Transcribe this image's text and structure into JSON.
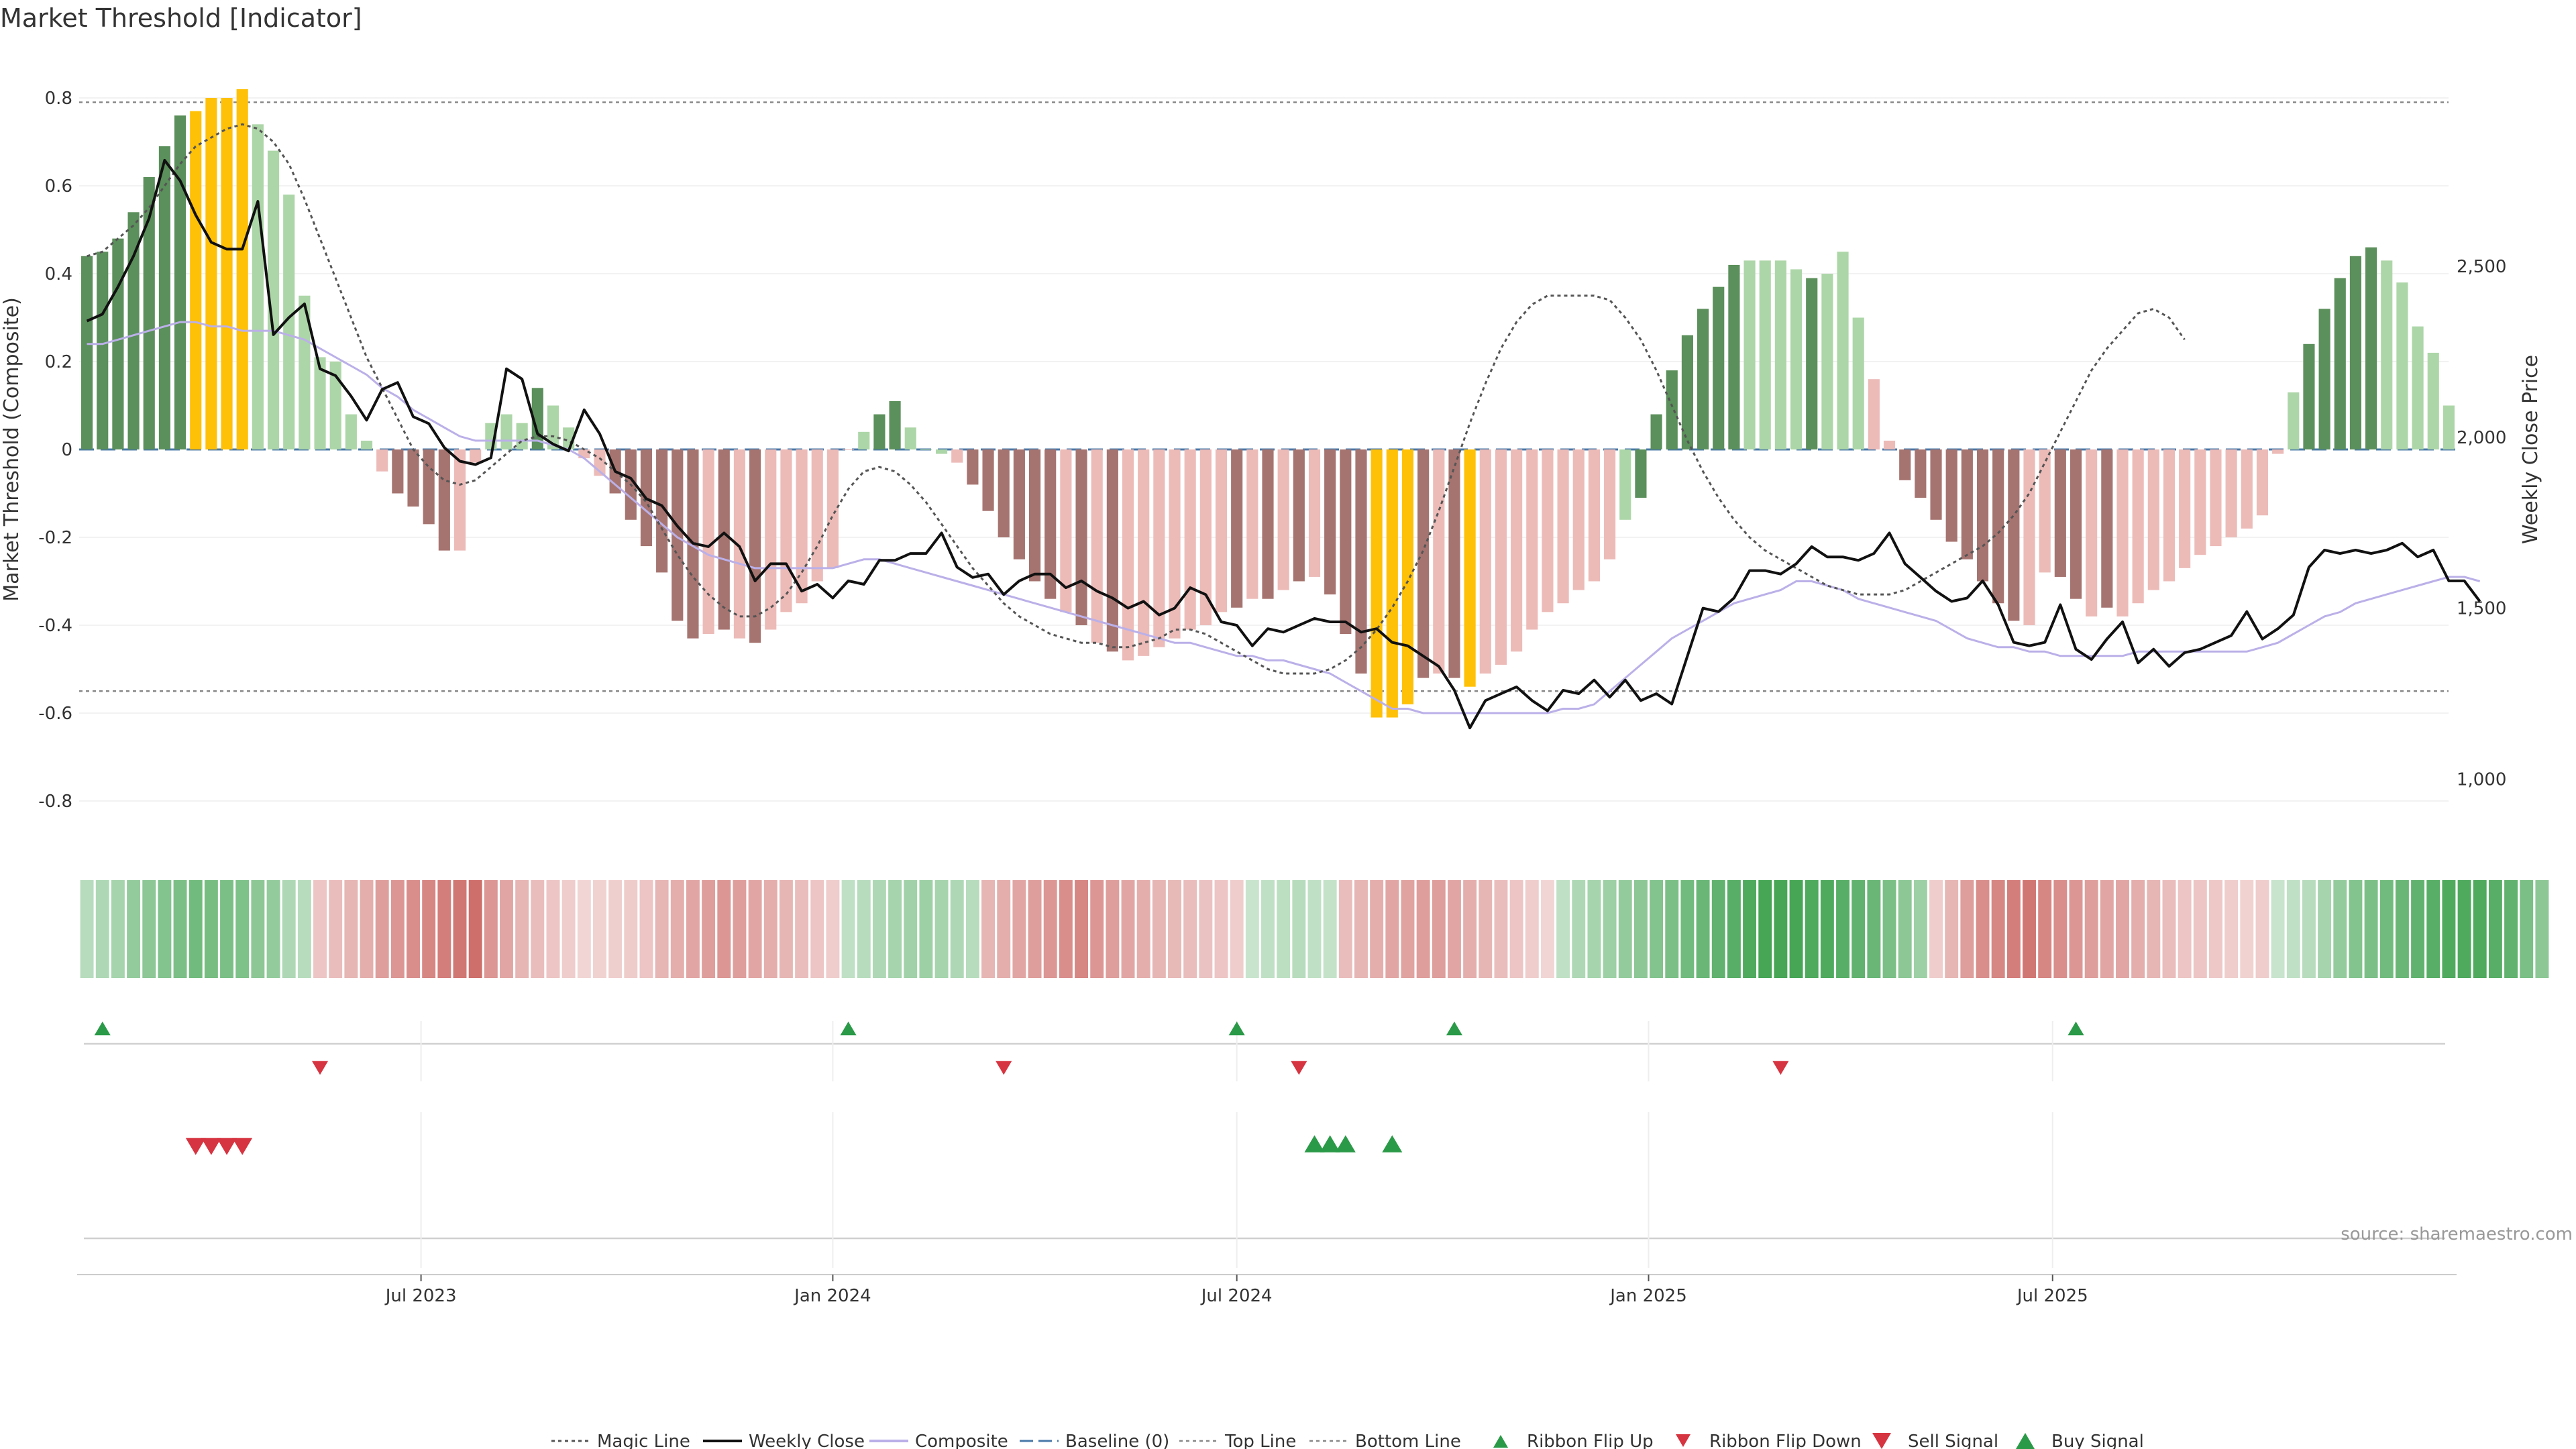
{
  "title": "Market Threshold [Indicator]",
  "source": "source: sharemaestro.com",
  "colors": {
    "strong_up": "#5b8f5b",
    "weak_up": "#add6a8",
    "extreme": "#ffc107",
    "strong_down": "#a67470",
    "weak_down": "#ecbbb8",
    "weekly_close": "#111111",
    "composite": "#bbb0e8",
    "magic": "#555555",
    "baseline": "#4a78a8",
    "buy": "#2b9a48",
    "sell": "#d63440"
  },
  "chart_data": {
    "type": "bar",
    "left_axis": {
      "label": "Market Threshold (Composite)",
      "ticks": [
        "0.8",
        "0.6",
        "0.4",
        "0.2",
        "0",
        "-0.2",
        "-0.4",
        "-0.6",
        "-0.8"
      ],
      "ylim": [
        -0.9,
        0.9
      ]
    },
    "right_axis": {
      "label": "Weekly Close Price",
      "ticks": [
        "2,500",
        "2,000",
        "1,500",
        "1,000"
      ],
      "ylim": [
        850,
        2900
      ]
    },
    "x_ticks": [
      "Jul 2023",
      "Jan 2024",
      "Jul 2024",
      "Jan 2025",
      "Jul 2025"
    ],
    "x_tick_weeks": [
      21.5,
      48,
      74,
      100.5,
      126.5
    ],
    "top_line": 0.79,
    "bottom_line": -0.55,
    "baseline": 0,
    "histogram": [
      0.44,
      0.45,
      0.48,
      0.54,
      0.62,
      0.69,
      0.76,
      0.77,
      0.8,
      0.8,
      0.82,
      0.74,
      0.68,
      0.58,
      0.35,
      0.21,
      0.2,
      0.08,
      0.02,
      -0.05,
      -0.1,
      -0.13,
      -0.17,
      -0.23,
      -0.23,
      -0.03,
      0.06,
      0.08,
      0.06,
      0.14,
      0.1,
      0.05,
      -0.02,
      -0.06,
      -0.1,
      -0.16,
      -0.22,
      -0.28,
      -0.39,
      -0.43,
      -0.42,
      -0.41,
      -0.43,
      -0.44,
      -0.41,
      -0.37,
      -0.35,
      -0.3,
      -0.27,
      0.0,
      0.04,
      0.08,
      0.11,
      0.05,
      0.0,
      -0.01,
      -0.03,
      -0.08,
      -0.14,
      -0.2,
      -0.25,
      -0.3,
      -0.34,
      -0.37,
      -0.4,
      -0.44,
      -0.46,
      -0.48,
      -0.47,
      -0.45,
      -0.43,
      -0.41,
      -0.4,
      -0.37,
      -0.36,
      -0.34,
      -0.34,
      -0.32,
      -0.3,
      -0.29,
      -0.33,
      -0.42,
      -0.51,
      -0.61,
      -0.61,
      -0.58,
      -0.52,
      -0.51,
      -0.52,
      -0.54,
      -0.51,
      -0.49,
      -0.46,
      -0.41,
      -0.37,
      -0.35,
      -0.32,
      -0.3,
      -0.25,
      -0.16,
      -0.11,
      0.08,
      0.18,
      0.26,
      0.32,
      0.37,
      0.42,
      0.43,
      0.43,
      0.43,
      0.41,
      0.39,
      0.4,
      0.45,
      0.3,
      0.16,
      0.02,
      -0.07,
      -0.11,
      -0.16,
      -0.21,
      -0.25,
      -0.3,
      -0.35,
      -0.39,
      -0.4,
      -0.28,
      -0.29,
      -0.34,
      -0.38,
      -0.36,
      -0.38,
      -0.35,
      -0.32,
      -0.3,
      -0.27,
      -0.24,
      -0.22,
      -0.2,
      -0.18,
      -0.15,
      -0.01,
      0.13,
      0.24,
      0.32,
      0.39,
      0.44,
      0.46,
      0.43,
      0.38,
      0.28,
      0.22,
      0.1
    ],
    "bar_class": [
      0,
      0,
      0,
      0,
      0,
      0,
      0,
      2,
      2,
      2,
      2,
      1,
      1,
      1,
      1,
      1,
      1,
      1,
      1,
      4,
      3,
      3,
      3,
      3,
      4,
      4,
      1,
      1,
      1,
      0,
      1,
      1,
      4,
      4,
      3,
      3,
      3,
      3,
      3,
      3,
      4,
      3,
      4,
      3,
      4,
      4,
      4,
      4,
      4,
      4,
      1,
      0,
      0,
      1,
      1,
      1,
      4,
      3,
      3,
      3,
      3,
      3,
      3,
      4,
      3,
      4,
      3,
      4,
      4,
      4,
      4,
      4,
      4,
      4,
      3,
      4,
      3,
      4,
      3,
      4,
      3,
      3,
      3,
      2,
      2,
      2,
      3,
      4,
      3,
      2,
      4,
      4,
      4,
      4,
      4,
      4,
      4,
      4,
      4,
      1,
      0,
      0,
      0,
      0,
      0,
      0,
      0,
      1,
      1,
      1,
      1,
      0,
      1,
      1,
      1,
      4,
      4,
      3,
      3,
      3,
      3,
      3,
      3,
      3,
      3,
      4,
      4,
      3,
      3,
      4,
      3,
      4,
      4,
      4,
      4,
      4,
      4,
      4,
      4,
      4,
      4,
      4,
      1,
      0,
      0,
      0,
      0,
      0,
      1,
      1,
      1,
      1,
      1,
      1
    ],
    "weekly_close": [
      2340,
      2360,
      2440,
      2530,
      2640,
      2810,
      2750,
      2650,
      2570,
      2550,
      2550,
      2690,
      2300,
      2350,
      2390,
      2200,
      2180,
      2120,
      2050,
      2140,
      2160,
      2060,
      2040,
      1970,
      1930,
      1920,
      1940,
      2200,
      2170,
      2010,
      1980,
      1960,
      2080,
      2010,
      1900,
      1880,
      1820,
      1800,
      1740,
      1690,
      1680,
      1720,
      1680,
      1580,
      1630,
      1630,
      1550,
      1570,
      1530,
      1580,
      1570,
      1640,
      1640,
      1660,
      1660,
      1720,
      1620,
      1590,
      1600,
      1540,
      1580,
      1600,
      1600,
      1560,
      1580,
      1550,
      1530,
      1500,
      1520,
      1480,
      1500,
      1560,
      1540,
      1460,
      1450,
      1390,
      1440,
      1430,
      1450,
      1470,
      1460,
      1460,
      1430,
      1440,
      1400,
      1390,
      1360,
      1330,
      1260,
      1150,
      1230,
      1250,
      1270,
      1230,
      1200,
      1260,
      1250,
      1290,
      1240,
      1290,
      1230,
      1250,
      1220,
      1360,
      1500,
      1490,
      1530,
      1610,
      1610,
      1600,
      1630,
      1680,
      1650,
      1650,
      1640,
      1660,
      1720,
      1630,
      1590,
      1550,
      1520,
      1530,
      1580,
      1510,
      1400,
      1390,
      1400,
      1510,
      1380,
      1350,
      1410,
      1460,
      1340,
      1380,
      1330,
      1370,
      1380,
      1400,
      1420,
      1490,
      1410,
      1440,
      1480,
      1620,
      1670,
      1660,
      1670,
      1660,
      1670,
      1690,
      1650,
      1670,
      1580,
      1580,
      1520
    ],
    "composite": [
      0.24,
      0.24,
      0.25,
      0.26,
      0.27,
      0.28,
      0.29,
      0.29,
      0.28,
      0.28,
      0.27,
      0.27,
      0.27,
      0.26,
      0.25,
      0.23,
      0.21,
      0.19,
      0.17,
      0.14,
      0.12,
      0.09,
      0.07,
      0.05,
      0.03,
      0.02,
      0.02,
      0.02,
      0.02,
      0.02,
      0.01,
      0.0,
      -0.02,
      -0.05,
      -0.08,
      -0.11,
      -0.14,
      -0.17,
      -0.2,
      -0.22,
      -0.24,
      -0.25,
      -0.26,
      -0.27,
      -0.27,
      -0.27,
      -0.27,
      -0.27,
      -0.27,
      -0.26,
      -0.25,
      -0.25,
      -0.26,
      -0.27,
      -0.28,
      -0.29,
      -0.3,
      -0.31,
      -0.32,
      -0.33,
      -0.34,
      -0.35,
      -0.36,
      -0.37,
      -0.38,
      -0.39,
      -0.4,
      -0.41,
      -0.42,
      -0.43,
      -0.44,
      -0.44,
      -0.45,
      -0.46,
      -0.47,
      -0.47,
      -0.48,
      -0.48,
      -0.49,
      -0.5,
      -0.51,
      -0.53,
      -0.55,
      -0.57,
      -0.59,
      -0.59,
      -0.6,
      -0.6,
      -0.6,
      -0.6,
      -0.6,
      -0.6,
      -0.6,
      -0.6,
      -0.6,
      -0.59,
      -0.59,
      -0.58,
      -0.55,
      -0.52,
      -0.49,
      -0.46,
      -0.43,
      -0.41,
      -0.39,
      -0.37,
      -0.35,
      -0.34,
      -0.33,
      -0.32,
      -0.3,
      -0.3,
      -0.31,
      -0.32,
      -0.34,
      -0.35,
      -0.36,
      -0.37,
      -0.38,
      -0.39,
      -0.41,
      -0.43,
      -0.44,
      -0.45,
      -0.45,
      -0.46,
      -0.46,
      -0.47,
      -0.47,
      -0.47,
      -0.47,
      -0.47,
      -0.46,
      -0.46,
      -0.46,
      -0.46,
      -0.46,
      -0.46,
      -0.46,
      -0.46,
      -0.45,
      -0.44,
      -0.42,
      -0.4,
      -0.38,
      -0.37,
      -0.35,
      -0.34,
      -0.33,
      -0.32,
      -0.31,
      -0.3,
      -0.29,
      -0.29,
      -0.3
    ],
    "magic_line": [
      0.44,
      0.45,
      0.48,
      0.51,
      0.55,
      0.6,
      0.65,
      0.69,
      0.71,
      0.73,
      0.74,
      0.73,
      0.7,
      0.65,
      0.57,
      0.48,
      0.39,
      0.3,
      0.21,
      0.14,
      0.07,
      0.0,
      -0.04,
      -0.07,
      -0.08,
      -0.07,
      -0.04,
      -0.01,
      0.02,
      0.03,
      0.03,
      0.02,
      0.0,
      -0.02,
      -0.05,
      -0.08,
      -0.12,
      -0.18,
      -0.24,
      -0.29,
      -0.33,
      -0.36,
      -0.38,
      -0.38,
      -0.36,
      -0.33,
      -0.28,
      -0.22,
      -0.15,
      -0.09,
      -0.05,
      -0.04,
      -0.05,
      -0.08,
      -0.12,
      -0.17,
      -0.22,
      -0.27,
      -0.31,
      -0.35,
      -0.38,
      -0.4,
      -0.42,
      -0.43,
      -0.44,
      -0.44,
      -0.45,
      -0.45,
      -0.44,
      -0.43,
      -0.41,
      -0.41,
      -0.42,
      -0.44,
      -0.46,
      -0.48,
      -0.5,
      -0.51,
      -0.51,
      -0.51,
      -0.5,
      -0.48,
      -0.45,
      -0.41,
      -0.36,
      -0.3,
      -0.23,
      -0.14,
      -0.04,
      0.06,
      0.15,
      0.23,
      0.29,
      0.33,
      0.35,
      0.35,
      0.35,
      0.35,
      0.34,
      0.3,
      0.25,
      0.18,
      0.1,
      0.02,
      -0.05,
      -0.11,
      -0.16,
      -0.2,
      -0.23,
      -0.25,
      -0.27,
      -0.29,
      -0.31,
      -0.32,
      -0.33,
      -0.33,
      -0.33,
      -0.32,
      -0.3,
      -0.28,
      -0.26,
      -0.24,
      -0.22,
      -0.19,
      -0.15,
      -0.1,
      -0.03,
      0.04,
      0.11,
      0.18,
      0.23,
      0.27,
      0.31,
      0.32,
      0.3,
      0.25
    ],
    "magic_start": 25,
    "ribbon": [
      0.25,
      0.3,
      0.35,
      0.45,
      0.5,
      0.55,
      0.6,
      0.65,
      0.62,
      0.6,
      0.58,
      0.5,
      0.45,
      0.3,
      0.25,
      -0.2,
      -0.25,
      -0.3,
      -0.35,
      -0.45,
      -0.5,
      -0.55,
      -0.6,
      -0.65,
      -0.7,
      -0.75,
      -0.5,
      -0.4,
      -0.3,
      -0.25,
      -0.2,
      -0.15,
      -0.1,
      -0.12,
      -0.14,
      -0.16,
      -0.2,
      -0.3,
      -0.35,
      -0.4,
      -0.45,
      -0.5,
      -0.45,
      -0.4,
      -0.35,
      -0.3,
      -0.25,
      -0.2,
      -0.15,
      0.2,
      0.25,
      0.3,
      0.35,
      0.38,
      0.4,
      0.35,
      0.3,
      0.25,
      -0.3,
      -0.35,
      -0.4,
      -0.45,
      -0.5,
      -0.55,
      -0.6,
      -0.5,
      -0.45,
      -0.4,
      -0.35,
      -0.3,
      -0.28,
      -0.25,
      -0.22,
      -0.2,
      -0.15,
      0.15,
      0.2,
      0.22,
      0.25,
      0.2,
      0.18,
      -0.25,
      -0.3,
      -0.35,
      -0.4,
      -0.42,
      -0.45,
      -0.45,
      -0.4,
      -0.35,
      -0.3,
      -0.25,
      -0.2,
      -0.15,
      -0.1,
      0.2,
      0.3,
      0.35,
      0.4,
      0.45,
      0.5,
      0.55,
      0.6,
      0.65,
      0.7,
      0.75,
      0.8,
      0.85,
      0.9,
      0.9,
      0.9,
      0.85,
      0.85,
      0.8,
      0.75,
      0.7,
      0.6,
      0.5,
      0.4,
      -0.15,
      -0.3,
      -0.45,
      -0.55,
      -0.6,
      -0.65,
      -0.7,
      -0.6,
      -0.55,
      -0.5,
      -0.45,
      -0.4,
      -0.4,
      -0.35,
      -0.3,
      -0.25,
      -0.2,
      -0.2,
      -0.18,
      -0.15,
      -0.12,
      -0.15,
      0.15,
      0.2,
      0.25,
      0.35,
      0.45,
      0.55,
      0.6,
      0.65,
      0.7,
      0.75,
      0.8,
      0.85,
      0.85,
      0.85,
      0.8,
      0.75,
      0.6,
      0.5
    ],
    "ribbon_flip_up_weeks": [
      1,
      49,
      74,
      88,
      128
    ],
    "ribbon_flip_down_weeks": [
      15,
      59,
      78,
      109
    ],
    "sell_signal_weeks": [
      7,
      8,
      9,
      10
    ],
    "buy_signal_weeks": [
      79,
      80,
      81,
      84
    ],
    "legend": [
      "Magic Line",
      "Weekly Close",
      "Composite",
      "Baseline (0)",
      "Top Line",
      "Bottom Line",
      "Ribbon Flip Up",
      "Ribbon Flip Down",
      "Sell Signal",
      "Buy Signal"
    ]
  }
}
